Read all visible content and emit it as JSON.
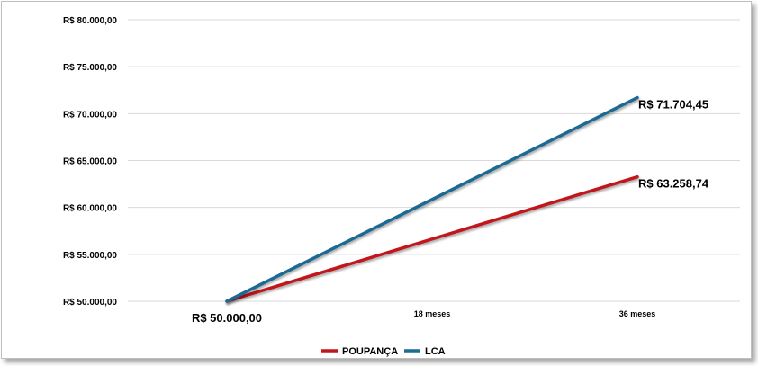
{
  "chart_data": {
    "type": "line",
    "categories": [
      "R$ 50.000,00",
      "18 meses",
      "36 meses"
    ],
    "series": [
      {
        "name": "POUPANÇA",
        "color": "#c0161e",
        "values": [
          50000,
          null,
          63258.74
        ]
      },
      {
        "name": "LCA",
        "color": "#1f6b94",
        "values": [
          50000,
          null,
          71704.45
        ]
      }
    ],
    "data_labels": [
      "R$ 71.704,45",
      "R$ 63.258,74"
    ],
    "ylim": [
      50000,
      80000
    ],
    "y_ticks": [
      {
        "value": 80000,
        "label": "R$ 80.000,00"
      },
      {
        "value": 75000,
        "label": "R$ 75.000,00"
      },
      {
        "value": 70000,
        "label": "R$ 70.000,00"
      },
      {
        "value": 65000,
        "label": "R$ 65.000,00"
      },
      {
        "value": 60000,
        "label": "R$ 60.000,00"
      },
      {
        "value": 55000,
        "label": "R$ 55.000,00"
      },
      {
        "value": 50000,
        "label": "R$ 50.000,00"
      }
    ],
    "legend": "bottom-center",
    "grid": true,
    "title": "",
    "xlabel": "",
    "ylabel": ""
  }
}
